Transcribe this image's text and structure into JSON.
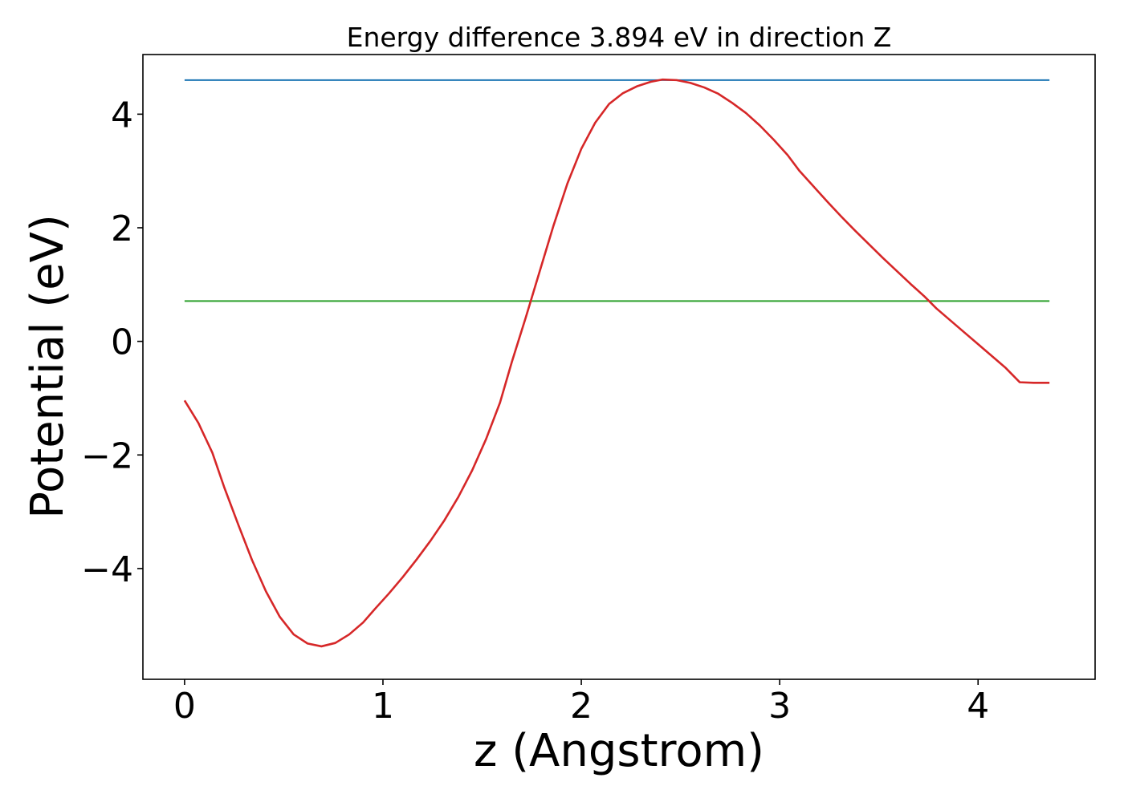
{
  "chart_data": {
    "type": "line",
    "title": "Energy difference 3.894 eV in direction Z",
    "xlabel": "z (Angstrom)",
    "ylabel": "Potential (eV)",
    "xlim": [
      -0.21,
      4.59
    ],
    "ylim": [
      -5.95,
      5.05
    ],
    "xticks": [
      0,
      1,
      2,
      3,
      4
    ],
    "xtick_labels": [
      "0",
      "1",
      "2",
      "3",
      "4"
    ],
    "yticks": [
      -4,
      -2,
      0,
      2,
      4
    ],
    "ytick_labels": [
      "−4",
      "−2",
      "0",
      "2",
      "4"
    ],
    "grid": false,
    "series": [
      {
        "color": "#1f77b4",
        "x": [
          0,
          4.36
        ],
        "y": [
          4.6,
          4.6
        ]
      },
      {
        "color": "#2ca02c",
        "x": [
          0,
          4.36
        ],
        "y": [
          0.71,
          0.71
        ]
      },
      {
        "color": "#d62728",
        "x": [
          0,
          0.07,
          0.14,
          0.2,
          0.27,
          0.34,
          0.41,
          0.48,
          0.55,
          0.62,
          0.69,
          0.76,
          0.83,
          0.9,
          0.96,
          1.03,
          1.1,
          1.17,
          1.24,
          1.31,
          1.38,
          1.45,
          1.52,
          1.59,
          1.65,
          1.72,
          1.79,
          1.86,
          1.93,
          2.0,
          2.07,
          2.14,
          2.21,
          2.28,
          2.35,
          2.41,
          2.48,
          2.55,
          2.62,
          2.69,
          2.76,
          2.83,
          2.9,
          2.97,
          3.04,
          3.1,
          3.17,
          3.24,
          3.31,
          3.38,
          3.45,
          3.52,
          3.59,
          3.66,
          3.73,
          3.79,
          3.86,
          3.93,
          4.0,
          4.07,
          4.14,
          4.21,
          4.28,
          4.36
        ],
        "y": [
          -1.04,
          -1.44,
          -1.96,
          -2.57,
          -3.22,
          -3.85,
          -4.4,
          -4.85,
          -5.16,
          -5.32,
          -5.37,
          -5.31,
          -5.16,
          -4.95,
          -4.71,
          -4.44,
          -4.15,
          -3.84,
          -3.51,
          -3.15,
          -2.74,
          -2.27,
          -1.72,
          -1.08,
          -0.36,
          0.42,
          1.23,
          2.04,
          2.78,
          3.39,
          3.85,
          4.18,
          4.37,
          4.49,
          4.57,
          4.61,
          4.6,
          4.55,
          4.47,
          4.36,
          4.2,
          4.02,
          3.8,
          3.55,
          3.28,
          3.0,
          2.73,
          2.46,
          2.2,
          1.95,
          1.71,
          1.47,
          1.24,
          1.01,
          0.79,
          0.58,
          0.37,
          0.16,
          -0.05,
          -0.26,
          -0.47,
          -0.72,
          -0.73,
          -0.73
        ]
      }
    ]
  }
}
